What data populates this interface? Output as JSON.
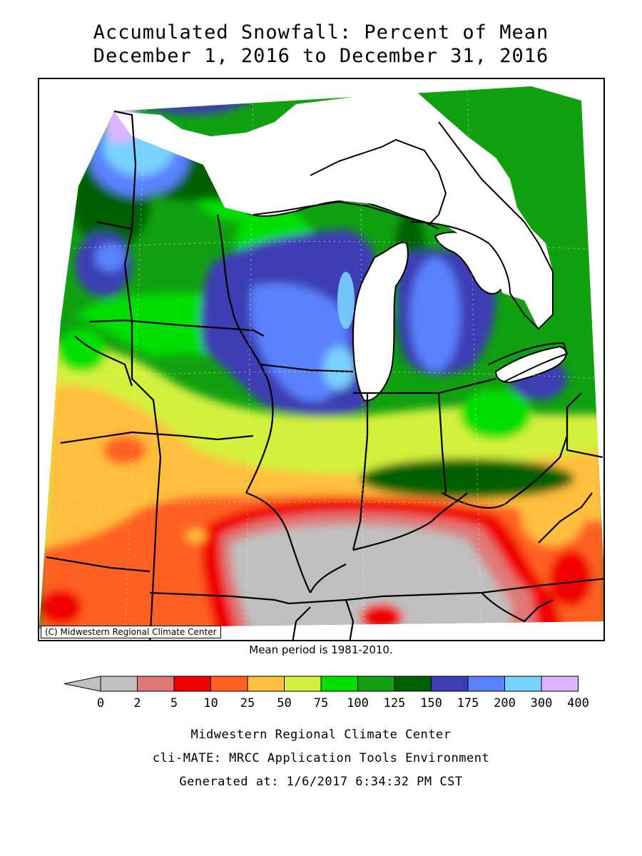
{
  "title": {
    "line1": "Accumulated Snowfall: Percent of Mean",
    "line2": "December 1, 2016 to December 31, 2016"
  },
  "map": {
    "copyright": "(C) Midwestern Regional Climate Center",
    "mean_period": "Mean period is 1981-2010.",
    "water_color": "#ffffff",
    "border_color": "#000000"
  },
  "legend": {
    "ticks": [
      "0",
      "2",
      "5",
      "10",
      "25",
      "50",
      "75",
      "100",
      "125",
      "150",
      "175",
      "200",
      "300",
      "400"
    ],
    "colors": [
      "#c0c0c0",
      "#e07878",
      "#f00000",
      "#ff6020",
      "#ffbe3c",
      "#d4f03c",
      "#00e000",
      "#10a010",
      "#006000",
      "#3c3cb4",
      "#5a82ff",
      "#78d2ff",
      "#dcb4ff"
    ]
  },
  "footer": {
    "line1": "Midwestern Regional Climate Center",
    "line2": "cli-MATE: MRCC Application Tools Environment",
    "line3": "Generated at: 1/6/2017 6:34:32 PM CST"
  }
}
